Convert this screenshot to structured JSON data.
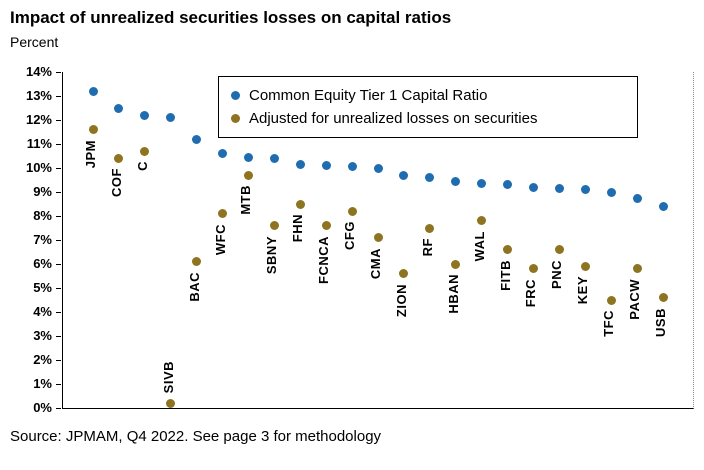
{
  "title": "Impact of unrealized securities losses on capital ratios",
  "subtitle": "Percent",
  "source": "Source: JPMAM, Q4 2022. See page 3 for methodology",
  "colors": {
    "cet1": "#1f6cb0",
    "adjusted": "#8e7320"
  },
  "chart_data": {
    "type": "scatter",
    "title": "Impact of unrealized securities losses on capital ratios",
    "ylabel": "Percent",
    "ylim": [
      0,
      14
    ],
    "ytick_step": 1,
    "ytick_format": "percent",
    "grid": false,
    "legend_position": "top-inside",
    "categories": [
      "JPM",
      "COF",
      "C",
      "SIVB",
      "BAC",
      "WFC",
      "MTB",
      "SBNY",
      "FHN",
      "FCNCA",
      "CFG",
      "CMA",
      "ZION",
      "RF",
      "HBAN",
      "WAL",
      "FITB",
      "FRC",
      "PNC",
      "KEY",
      "TFC",
      "PACW",
      "USB"
    ],
    "series": [
      {
        "name": "Common Equity Tier 1 Capital Ratio",
        "color_key": "cet1",
        "values": [
          13.2,
          12.5,
          12.2,
          12.1,
          11.2,
          10.6,
          10.45,
          10.4,
          10.15,
          10.1,
          10.05,
          10.0,
          9.7,
          9.6,
          9.45,
          9.35,
          9.3,
          9.2,
          9.15,
          9.1,
          9.0,
          8.75,
          8.4
        ]
      },
      {
        "name": "Adjusted for unrealized losses on securities",
        "color_key": "adjusted",
        "values": [
          11.6,
          10.4,
          10.7,
          0.2,
          6.1,
          8.1,
          9.7,
          7.6,
          8.5,
          7.6,
          8.2,
          7.1,
          5.6,
          7.5,
          6.0,
          7.8,
          6.6,
          5.8,
          6.6,
          5.9,
          4.5,
          5.8,
          4.6
        ]
      }
    ]
  }
}
